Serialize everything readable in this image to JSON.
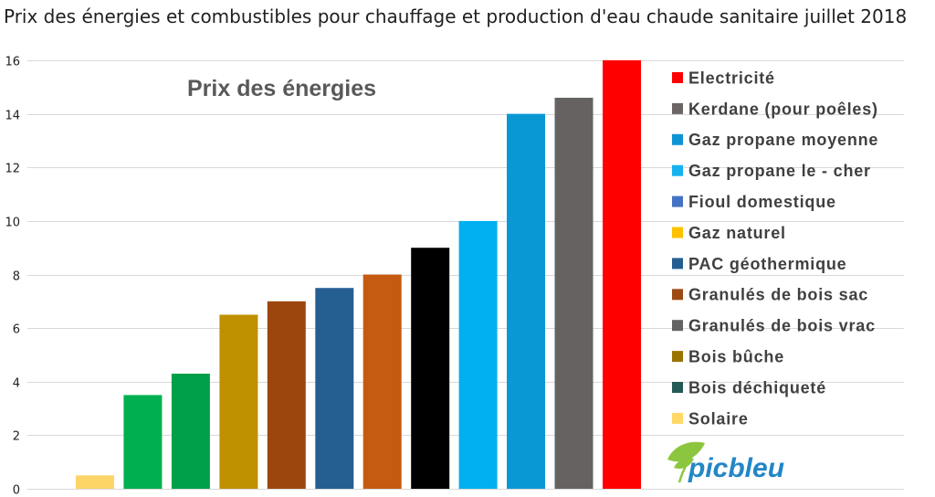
{
  "page": {
    "title": "Prix des énergies et combustibles pour chauffage et production d'eau chaude sanitaire juillet 2018"
  },
  "logo": {
    "text": "picbleu",
    "icon": "leaf-icon",
    "text_color": "#2286c7",
    "leaf_color": "#8cc63f"
  },
  "chart_data": {
    "type": "bar",
    "title": "Prix des énergies",
    "xlabel": "",
    "ylabel": "",
    "ylim": [
      0,
      16
    ],
    "yticks": [
      0,
      2,
      4,
      6,
      8,
      10,
      12,
      14,
      16
    ],
    "grid": true,
    "legend_position": "right",
    "series": [
      {
        "name": "Electricité",
        "value": 16.0,
        "bar_color": "#ff0000",
        "legend_color": "#ff0000"
      },
      {
        "name": "Kerdane (pour poêles)",
        "value": 14.6,
        "bar_color": "#676262",
        "legend_color": "#6b6566"
      },
      {
        "name": "Gaz propane moyenne",
        "value": 14.0,
        "bar_color": "#0a98d4",
        "legend_color": "#0e94d3"
      },
      {
        "name": "Gaz propane le - cher",
        "value": 10.0,
        "bar_color": "#00b0f0",
        "legend_color": "#16b2ee"
      },
      {
        "name": "Fioul domestique",
        "value": 9.0,
        "bar_color": "#000000",
        "legend_color": "#4472c4"
      },
      {
        "name": "Gaz naturel",
        "value": 8.0,
        "bar_color": "#c55a11",
        "legend_color": "#ffc000"
      },
      {
        "name": "PAC géothermique",
        "value": 7.5,
        "bar_color": "#255e91",
        "legend_color": "#245e91"
      },
      {
        "name": "Granulés de bois sac",
        "value": 7.0,
        "bar_color": "#9c460d",
        "legend_color": "#9e4a13"
      },
      {
        "name": "Granulés de bois vrac",
        "value": 6.5,
        "bar_color": "#bf9000",
        "legend_color": "#636363"
      },
      {
        "name": "Bois bûche",
        "value": 4.3,
        "bar_color": "#00a04a",
        "legend_color": "#9a7400"
      },
      {
        "name": "Bois déchiqueté",
        "value": 3.5,
        "bar_color": "#00b050",
        "legend_color": "#235a55"
      },
      {
        "name": "Solaire",
        "value": 0.5,
        "bar_color": "#fdd466",
        "legend_color": "#ffd868"
      }
    ]
  }
}
